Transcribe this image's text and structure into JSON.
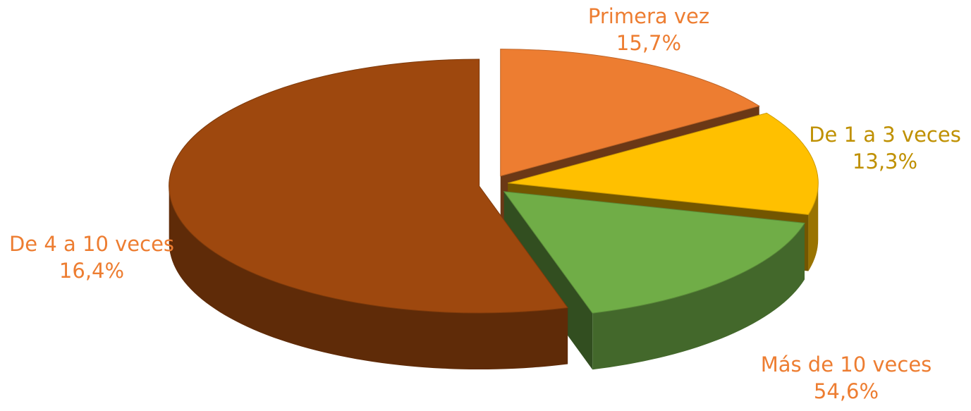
{
  "chart_data": {
    "type": "pie3d",
    "categories": [
      "Primera vez",
      "De 1 a 3 veces",
      "De 4 a 10 veces",
      "Más de 10 veces"
    ],
    "values": [
      15.7,
      13.3,
      16.4,
      54.6
    ],
    "value_labels": [
      "15,7%",
      "13,3%",
      "16,4%",
      "54,6%"
    ],
    "colors": [
      "#ed7d31",
      "#ffc000",
      "#70ad47",
      "#9e480e"
    ]
  }
}
